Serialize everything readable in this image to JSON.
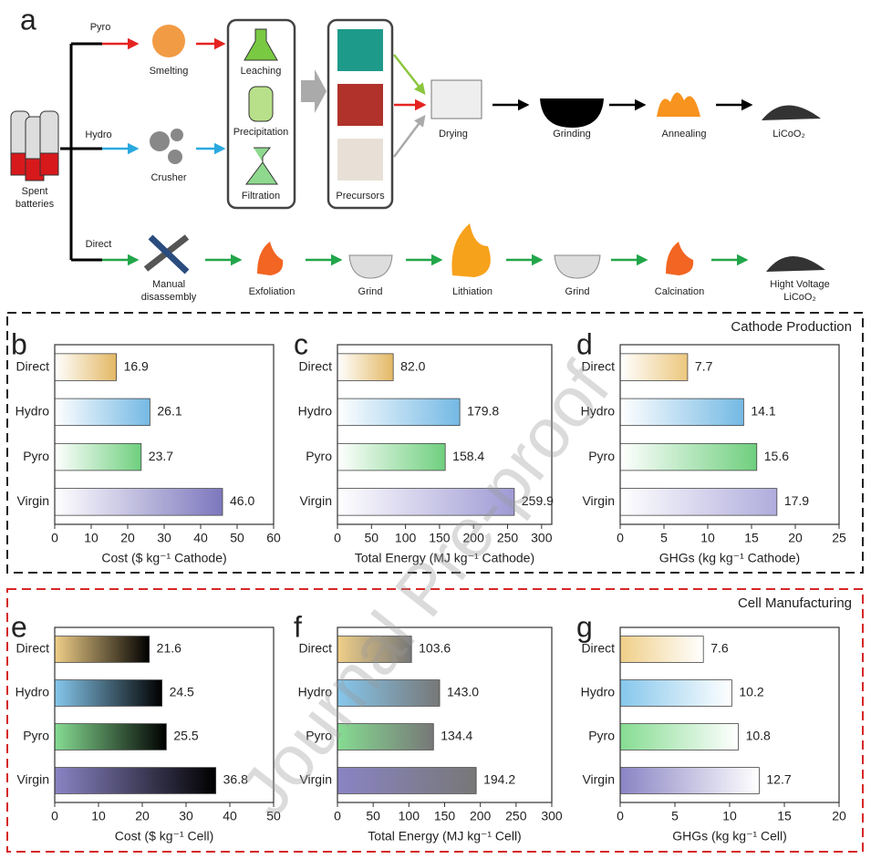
{
  "panel_a": {
    "letter": "a",
    "labels": {
      "pyro": "Pyro",
      "smelting": "Smelting",
      "hydro": "Hydro",
      "crusher": "Crusher",
      "direct": "Direct",
      "spent": [
        "Spent",
        "batteries"
      ],
      "leaching": "Leaching",
      "precipitation": "Precipitation",
      "filtration": "Filtration",
      "precursors": "Precursors",
      "drying": "Drying",
      "grinding": "Grinding",
      "annealing": "Annealing",
      "licoo2": "LiCoO₂",
      "manual": [
        "Manual",
        "disassembly"
      ],
      "exfoliation": "Exfoliation",
      "grind1": "Grind",
      "lithiation": "Lithiation",
      "grind2": "Grind",
      "calcination": "Calcination",
      "hv": [
        "Hight Voltage",
        "LiCoO₂"
      ]
    }
  },
  "section_titles": [
    "Cathode Production",
    "Cell Manufacturing"
  ],
  "watermark": "Journal Pre-proof",
  "chart_data": [
    {
      "type": "bar",
      "panel": "b",
      "categories": [
        "Direct",
        "Hydro",
        "Pyro",
        "Virgin"
      ],
      "values": [
        16.9,
        26.1,
        23.7,
        46.0
      ],
      "value_labels": [
        "16.9",
        "26.1",
        "23.7",
        "46.0"
      ],
      "xlabel": "Cost ($ kg⁻¹ Cathode)",
      "xlim": [
        0,
        60
      ],
      "xticks": [
        0,
        10,
        20,
        30,
        40,
        50,
        60
      ],
      "colors": [
        "#e3b864",
        "#74b9e4",
        "#6fcf7e",
        "#7d77bd"
      ],
      "fade": "#ffffff",
      "fade_side": "left"
    },
    {
      "type": "bar",
      "panel": "c",
      "categories": [
        "Direct",
        "Hydro",
        "Pyro",
        "Virgin"
      ],
      "values": [
        82.0,
        179.8,
        158.4,
        259.9
      ],
      "value_labels": [
        "82.0",
        "179.8",
        "158.4",
        "259.9"
      ],
      "xlabel": "Total Energy (MJ kg⁻¹ Cathode)",
      "xlim": [
        0,
        315
      ],
      "xticks": [
        0,
        50,
        100,
        150,
        200,
        250,
        300
      ],
      "colors": [
        "#e3b864",
        "#74b9e4",
        "#6fcf7e",
        "#9f9ad4"
      ],
      "fade": "#ffffff",
      "fade_side": "left"
    },
    {
      "type": "bar",
      "panel": "d",
      "categories": [
        "Direct",
        "Hydro",
        "Pyro",
        "Virgin"
      ],
      "values": [
        7.7,
        14.1,
        15.6,
        17.9
      ],
      "value_labels": [
        "7.7",
        "14.1",
        "15.6",
        "17.9"
      ],
      "xlabel": "GHGs (kg kg⁻¹ Cathode)",
      "xlim": [
        0,
        25
      ],
      "xticks": [
        0,
        5,
        10,
        15,
        20,
        25
      ],
      "colors": [
        "#ecc77e",
        "#74b9e4",
        "#6fcf7e",
        "#b0acdc"
      ],
      "fade": "#ffffff",
      "fade_side": "left"
    },
    {
      "type": "bar",
      "panel": "e",
      "categories": [
        "Direct",
        "Hydro",
        "Pyro",
        "Virgin"
      ],
      "values": [
        21.6,
        24.5,
        25.5,
        36.8
      ],
      "value_labels": [
        "21.6",
        "24.5",
        "25.5",
        "36.8"
      ],
      "xlabel": "Cost ($ kg⁻¹ Cell)",
      "xlim": [
        0,
        50
      ],
      "xticks": [
        0,
        10,
        20,
        30,
        40,
        50
      ],
      "colors": [
        "#f0cf88",
        "#86c7ec",
        "#86dc92",
        "#8a84c4"
      ],
      "fade": "#000000",
      "fade_side": "right"
    },
    {
      "type": "bar",
      "panel": "f",
      "categories": [
        "Direct",
        "Hydro",
        "Pyro",
        "Virgin"
      ],
      "values": [
        103.6,
        143.0,
        134.4,
        194.2
      ],
      "value_labels": [
        "103.6",
        "143.0",
        "134.4",
        "194.2"
      ],
      "xlabel": "Total Energy (MJ kg⁻¹ Cell)",
      "xlim": [
        0,
        300
      ],
      "xticks": [
        0,
        50,
        100,
        150,
        200,
        250,
        300
      ],
      "colors": [
        "#f0cf88",
        "#86c7ec",
        "#86dc92",
        "#8a84c4"
      ],
      "fade": "#777777",
      "fade_side": "right"
    },
    {
      "type": "bar",
      "panel": "g",
      "categories": [
        "Direct",
        "Hydro",
        "Pyro",
        "Virgin"
      ],
      "values": [
        7.6,
        10.2,
        10.8,
        12.7
      ],
      "value_labels": [
        "7.6",
        "10.2",
        "10.8",
        "12.7"
      ],
      "xlabel": "GHGs (kg kg⁻¹ Cell)",
      "xlim": [
        0,
        20
      ],
      "xticks": [
        0,
        5,
        10,
        15,
        20
      ],
      "colors": [
        "#f0cf88",
        "#86c7ec",
        "#86dc92",
        "#8a84c4"
      ],
      "fade": "#ffffff",
      "fade_side": "right"
    }
  ]
}
